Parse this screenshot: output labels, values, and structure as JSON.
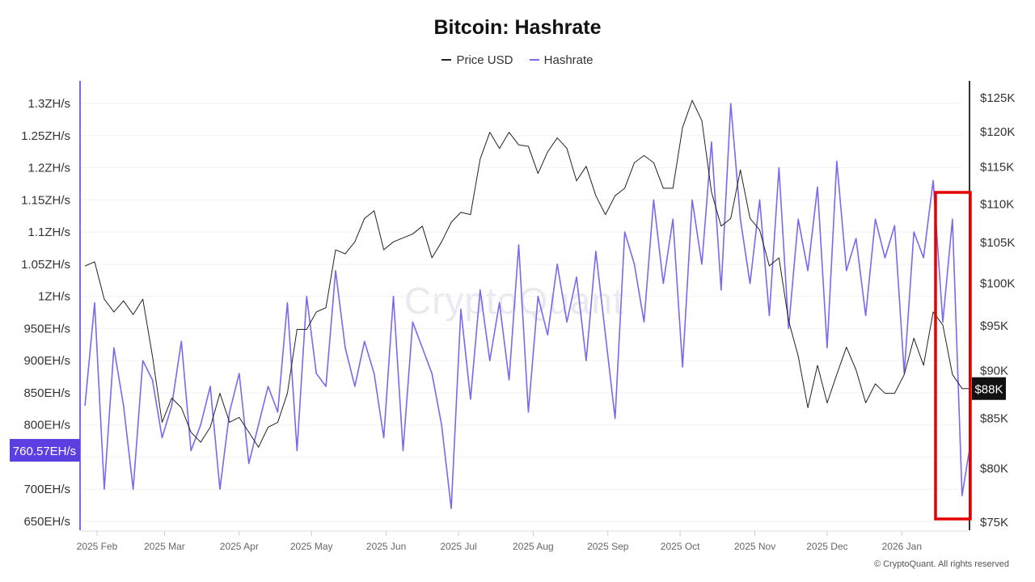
{
  "chart_data": {
    "type": "line",
    "title": "Bitcoin: Hashrate",
    "legend_position": "top",
    "grid": true,
    "x": [
      "2025-01-27",
      "2025-01-31",
      "2025-02-04",
      "2025-02-08",
      "2025-02-12",
      "2025-02-16",
      "2025-02-20",
      "2025-02-24",
      "2025-02-28",
      "2025-03-04",
      "2025-03-08",
      "2025-03-12",
      "2025-03-16",
      "2025-03-20",
      "2025-03-24",
      "2025-03-28",
      "2025-04-01",
      "2025-04-05",
      "2025-04-09",
      "2025-04-13",
      "2025-04-17",
      "2025-04-21",
      "2025-04-25",
      "2025-04-29",
      "2025-05-03",
      "2025-05-07",
      "2025-05-11",
      "2025-05-15",
      "2025-05-19",
      "2025-05-23",
      "2025-05-27",
      "2025-05-31",
      "2025-06-04",
      "2025-06-08",
      "2025-06-12",
      "2025-06-16",
      "2025-06-20",
      "2025-06-24",
      "2025-06-28",
      "2025-07-02",
      "2025-07-06",
      "2025-07-10",
      "2025-07-14",
      "2025-07-18",
      "2025-07-22",
      "2025-07-26",
      "2025-07-30",
      "2025-08-03",
      "2025-08-07",
      "2025-08-11",
      "2025-08-15",
      "2025-08-19",
      "2025-08-23",
      "2025-08-27",
      "2025-08-31",
      "2025-09-04",
      "2025-09-08",
      "2025-09-12",
      "2025-09-16",
      "2025-09-20",
      "2025-09-24",
      "2025-09-28",
      "2025-10-02",
      "2025-10-06",
      "2025-10-10",
      "2025-10-14",
      "2025-10-18",
      "2025-10-22",
      "2025-10-26",
      "2025-10-30",
      "2025-11-03",
      "2025-11-07",
      "2025-11-11",
      "2025-11-15",
      "2025-11-19",
      "2025-11-23",
      "2025-11-27",
      "2025-12-01",
      "2025-12-05",
      "2025-12-09",
      "2025-12-13",
      "2025-12-17",
      "2025-12-21",
      "2025-12-25",
      "2025-12-29",
      "2026-01-02",
      "2026-01-06",
      "2026-01-10",
      "2026-01-14",
      "2026-01-18",
      "2026-01-22",
      "2026-01-26",
      "2026-01-29"
    ],
    "series": [
      {
        "name": "Price USD",
        "axis": "right",
        "unit": "USD (K)",
        "color": "#222222",
        "values": [
          102,
          102.5,
          98,
          96.5,
          97.8,
          96.2,
          98,
          91.5,
          84.5,
          87,
          86,
          83.5,
          82.5,
          84,
          87.5,
          84.5,
          85,
          83.5,
          82,
          84,
          84.5,
          87.5,
          94.5,
          94.5,
          96.5,
          97,
          104,
          103.5,
          105,
          108,
          109,
          104,
          105,
          105.5,
          106,
          107,
          103,
          105,
          107.5,
          108.8,
          108.5,
          116,
          119.8,
          117.5,
          119.8,
          118,
          117.8,
          114,
          117,
          119,
          117.5,
          113,
          115,
          111,
          108.5,
          111,
          112,
          115.5,
          116.5,
          115.5,
          112,
          112,
          120.5,
          124.5,
          121.5,
          111.5,
          107,
          108,
          114.5,
          108,
          106.5,
          102,
          103,
          95.5,
          91.5,
          86,
          90.5,
          86.5,
          89.5,
          92.5,
          90,
          86.5,
          88.5,
          87.5,
          87.5,
          89.5,
          93.5,
          90.5,
          96.5,
          95,
          89.5,
          88,
          88
        ]
      },
      {
        "name": "Hashrate",
        "axis": "left",
        "unit": "EH/s",
        "color": "#7b68ee",
        "values": [
          830,
          990,
          700,
          920,
          830,
          700,
          900,
          870,
          780,
          830,
          930,
          760,
          800,
          860,
          700,
          820,
          880,
          740,
          800,
          860,
          820,
          990,
          760,
          1000,
          880,
          860,
          1040,
          920,
          860,
          930,
          880,
          780,
          1000,
          760,
          960,
          920,
          880,
          800,
          670,
          980,
          840,
          1010,
          900,
          990,
          870,
          1080,
          820,
          1000,
          940,
          1050,
          960,
          1030,
          900,
          1070,
          940,
          810,
          1100,
          1050,
          960,
          1150,
          1020,
          1120,
          890,
          1150,
          1050,
          1240,
          1010,
          1300,
          1120,
          1020,
          1150,
          970,
          1200,
          950,
          1120,
          1040,
          1170,
          920,
          1210,
          1040,
          1090,
          970,
          1120,
          1060,
          1110,
          880,
          1100,
          1060,
          1180,
          960,
          1120,
          690,
          760.57
        ]
      }
    ],
    "left_axis": {
      "ticks": [
        "650EH/s",
        "700EH/s",
        "750EH/s",
        "800EH/s",
        "850EH/s",
        "900EH/s",
        "950EH/s",
        "1ZH/s",
        "1.05ZH/s",
        "1.1ZH/s",
        "1.15ZH/s",
        "1.2ZH/s",
        "1.25ZH/s",
        "1.3ZH/s"
      ],
      "tick_values": [
        650,
        700,
        750,
        800,
        850,
        900,
        950,
        1000,
        1050,
        1100,
        1150,
        1200,
        1250,
        1300
      ],
      "range": [
        650,
        1300
      ],
      "scale": "linear"
    },
    "right_axis": {
      "ticks": [
        "$75K",
        "$80K",
        "$85K",
        "$90K",
        "$95K",
        "$100K",
        "$105K",
        "$110K",
        "$115K",
        "$120K",
        "$125K"
      ],
      "tick_values": [
        75,
        80,
        85,
        90,
        95,
        100,
        105,
        110,
        115,
        120,
        125
      ],
      "range": [
        75,
        125
      ],
      "scale": "log"
    },
    "x_ticks": [
      {
        "label": "2025 Feb",
        "date": "2025-02-01"
      },
      {
        "label": "2025 Mar",
        "date": "2025-03-01"
      },
      {
        "label": "2025 Apr",
        "date": "2025-04-01"
      },
      {
        "label": "2025 May",
        "date": "2025-05-01"
      },
      {
        "label": "2025 Jun",
        "date": "2025-06-01"
      },
      {
        "label": "2025 Jul",
        "date": "2025-07-01"
      },
      {
        "label": "2025 Aug",
        "date": "2025-08-01"
      },
      {
        "label": "2025 Sep",
        "date": "2025-09-01"
      },
      {
        "label": "2025 Oct",
        "date": "2025-10-01"
      },
      {
        "label": "2025 Nov",
        "date": "2025-11-01"
      },
      {
        "label": "2025 Dec",
        "date": "2025-12-01"
      },
      {
        "label": "2026 Jan",
        "date": "2026-01-01"
      }
    ],
    "current_hashrate_label": "760.57EH/s",
    "current_price_label": "$88K",
    "highlight_box_color": "#e60000"
  },
  "watermark": "CryptoQuant",
  "credit": "© CryptoQuant. All rights reserved"
}
